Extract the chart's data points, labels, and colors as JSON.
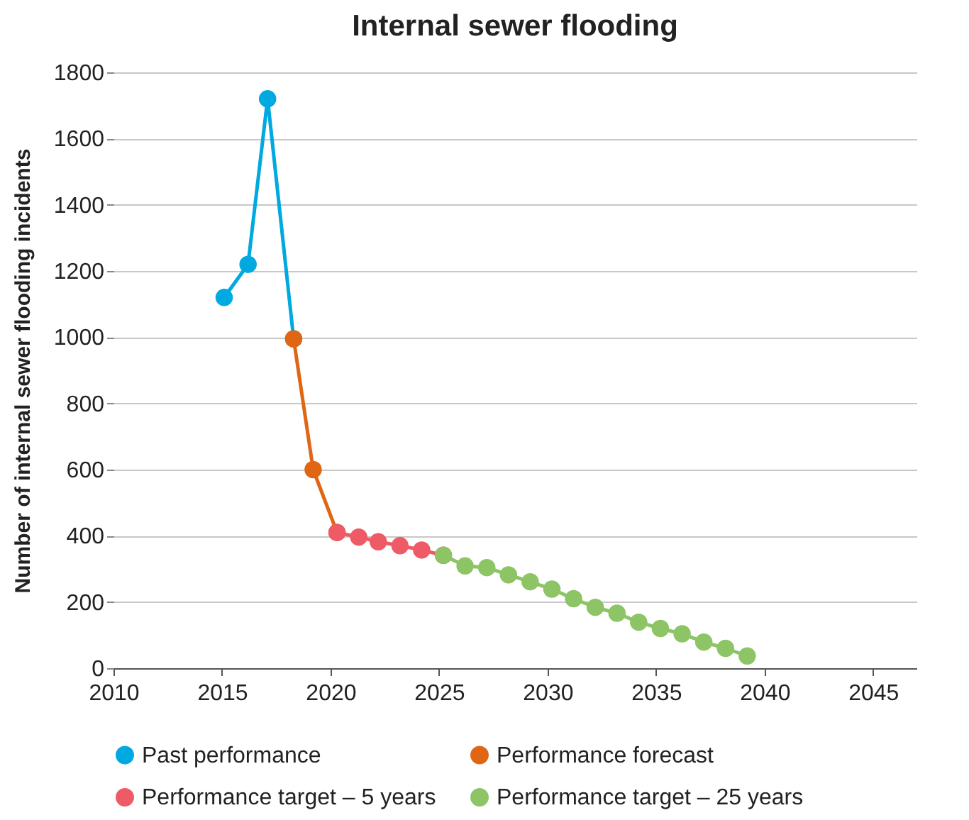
{
  "chart_data": {
    "type": "line",
    "title": "Internal sewer flooding",
    "ylabel": "Number of internal sewer flooding incidents",
    "xlim": [
      2010,
      2047
    ],
    "xticks": [
      2010,
      2015,
      2020,
      2025,
      2030,
      2035,
      2040,
      2045
    ],
    "ylim": [
      0,
      1800
    ],
    "yticks": [
      0,
      200,
      400,
      600,
      800,
      1000,
      1200,
      1400,
      1600,
      1800
    ],
    "grid": "y",
    "legend": "bottom",
    "marker": "circle",
    "line_style": "solid",
    "series": [
      {
        "name": "Past performance",
        "color": "#00a9e0",
        "x": [
          2015.1,
          2016.2,
          2017.1,
          2018.3
        ],
        "values": [
          1120,
          1220,
          1720,
          995
        ]
      },
      {
        "name": "Performance forecast",
        "color": "#e06614",
        "x": [
          2018.3,
          2019.2,
          2020.3
        ],
        "values": [
          995,
          600,
          410
        ]
      },
      {
        "name": "Performance target – 5 years",
        "color": "#ee5a66",
        "x": [
          2020.3,
          2021.3,
          2022.2,
          2023.2,
          2024.2,
          2025.2
        ],
        "values": [
          410,
          396,
          382,
          370,
          357,
          341
        ]
      },
      {
        "name": "Performance target – 25 years",
        "color": "#8dc465",
        "x": [
          2025.2,
          2026.2,
          2027.2,
          2028.2,
          2029.2,
          2030.2,
          2031.2,
          2032.2,
          2033.2,
          2034.2,
          2035.2,
          2036.2,
          2037.2,
          2038.2,
          2039.2
        ],
        "values": [
          341,
          309,
          304,
          282,
          261,
          239,
          210,
          184,
          166,
          139,
          120,
          104,
          79,
          60,
          37
        ]
      }
    ]
  }
}
